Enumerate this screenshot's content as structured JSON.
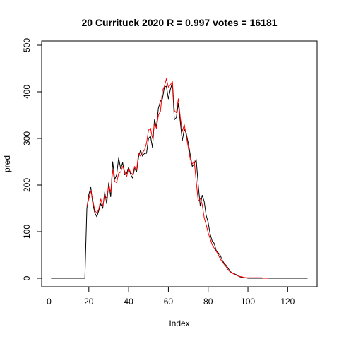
{
  "chart_data": {
    "type": "line",
    "title": "20 Currituck 2020 R = 0.997 votes = 16181",
    "xlabel": "Index",
    "ylabel": "pred",
    "xlim": [
      0,
      130
    ],
    "ylim": [
      0,
      500
    ],
    "xticks": [
      "0",
      "20",
      "40",
      "60",
      "80",
      "100",
      "120"
    ],
    "yticks": [
      "0",
      "100",
      "200",
      "300",
      "400",
      "500"
    ],
    "grid": false,
    "series": [
      {
        "color": "#000000",
        "x": [
          1,
          2,
          3,
          4,
          5,
          6,
          7,
          8,
          9,
          10,
          11,
          12,
          13,
          14,
          15,
          16,
          17,
          18,
          19,
          20,
          21,
          22,
          23,
          24,
          25,
          26,
          27,
          28,
          29,
          30,
          31,
          32,
          33,
          34,
          35,
          36,
          37,
          38,
          39,
          40,
          41,
          42,
          43,
          44,
          45,
          46,
          47,
          48,
          49,
          50,
          51,
          52,
          53,
          54,
          55,
          56,
          57,
          58,
          59,
          60,
          61,
          62,
          63,
          64,
          65,
          66,
          67,
          68,
          69,
          70,
          71,
          72,
          73,
          74,
          75,
          76,
          77,
          78,
          79,
          80,
          81,
          82,
          83,
          84,
          85,
          86,
          87,
          88,
          89,
          90,
          91,
          92,
          93,
          94,
          95,
          96,
          97,
          98,
          99,
          100,
          101,
          102,
          103,
          104,
          105,
          106,
          107,
          108,
          109,
          110,
          111,
          112,
          113,
          114,
          115,
          116,
          117,
          118,
          119,
          120,
          121,
          122,
          123,
          124,
          125,
          126,
          127,
          128,
          129,
          130
        ],
        "y": [
          0,
          0,
          0,
          0,
          0,
          0,
          0,
          0,
          0,
          0,
          0,
          0,
          0,
          0,
          0,
          0,
          0,
          0,
          150,
          180,
          195,
          160,
          140,
          132,
          145,
          160,
          150,
          185,
          160,
          205,
          175,
          250,
          212,
          222,
          258,
          235,
          248,
          222,
          225,
          238,
          223,
          215,
          236,
          228,
          260,
          275,
          262,
          268,
          268,
          300,
          305,
          280,
          340,
          325,
          365,
          380,
          385,
          410,
          412,
          385,
          405,
          420,
          340,
          345,
          375,
          335,
          295,
          320,
          310,
          290,
          265,
          240,
          245,
          255,
          200,
          155,
          178,
          165,
          135,
          120,
          95,
          80,
          75,
          60,
          55,
          50,
          40,
          32,
          28,
          22,
          15,
          12,
          10,
          8,
          5,
          3,
          2,
          1,
          1,
          0,
          0,
          0,
          0,
          0,
          0,
          0,
          0,
          0,
          0,
          0,
          0,
          0,
          0,
          0,
          0,
          0,
          0,
          0,
          0,
          0,
          0,
          0,
          0,
          0,
          0,
          0,
          0,
          0,
          0,
          0
        ]
      },
      {
        "color": "#ff0000",
        "x": [
          19,
          20,
          21,
          22,
          23,
          24,
          25,
          26,
          27,
          28,
          29,
          30,
          31,
          32,
          33,
          34,
          35,
          36,
          37,
          38,
          39,
          40,
          41,
          42,
          43,
          44,
          45,
          46,
          47,
          48,
          49,
          50,
          51,
          52,
          53,
          54,
          55,
          56,
          57,
          58,
          59,
          60,
          61,
          62,
          63,
          64,
          65,
          66,
          67,
          68,
          69,
          70,
          71,
          72,
          73,
          74,
          75,
          76,
          77,
          78,
          79,
          80,
          81,
          82,
          83,
          84,
          85,
          86,
          87,
          88,
          89,
          90,
          91,
          92,
          93,
          94,
          95,
          96,
          97,
          98,
          99,
          100,
          101,
          102,
          103,
          104,
          105,
          106,
          107,
          108,
          109,
          110
        ],
        "y": [
          155,
          170,
          188,
          168,
          145,
          140,
          148,
          170,
          155,
          178,
          172,
          198,
          185,
          232,
          208,
          205,
          225,
          228,
          240,
          230,
          218,
          235,
          228,
          222,
          240,
          232,
          268,
          262,
          270,
          275,
          290,
          318,
          322,
          300,
          332,
          322,
          350,
          358,
          402,
          412,
          428,
          410,
          415,
          422,
          360,
          355,
          385,
          345,
          315,
          330,
          305,
          280,
          255,
          245,
          252,
          208,
          165,
          172,
          158,
          130,
          115,
          98,
          85,
          72,
          65,
          58,
          52,
          42,
          36,
          30,
          25,
          18,
          14,
          11,
          9,
          7,
          5,
          4,
          3,
          2,
          1,
          1,
          1,
          1,
          1,
          1,
          1,
          1,
          1,
          0,
          0,
          0
        ]
      }
    ]
  }
}
